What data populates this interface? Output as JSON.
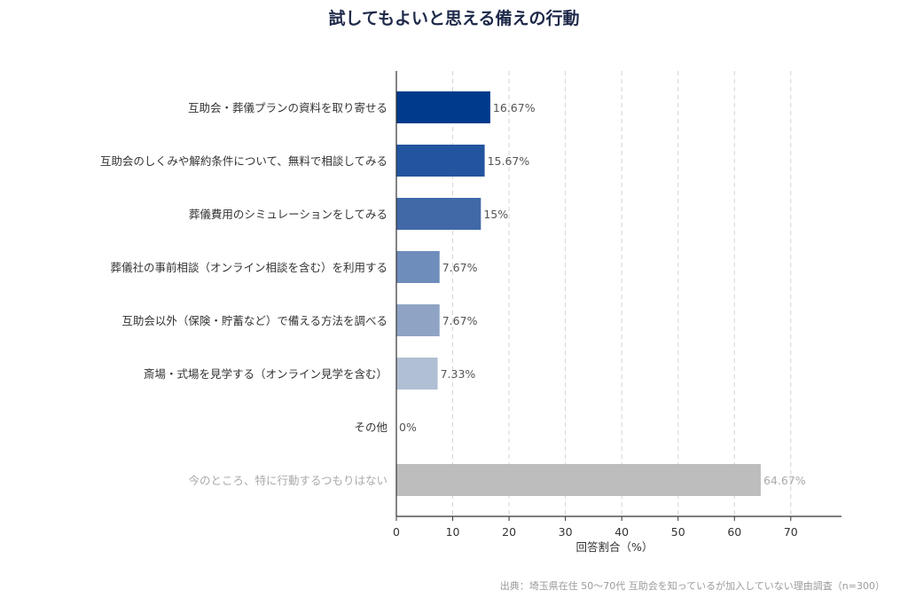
{
  "chart_data": {
    "type": "bar",
    "orientation": "horizontal",
    "title": "試してもよいと思える備えの行動",
    "xlabel": "回答割合（%）",
    "ylabel": "",
    "xlim": [
      0,
      79
    ],
    "xticks": [
      0,
      10,
      20,
      30,
      40,
      50,
      60,
      70
    ],
    "grid": "vertical-dashed",
    "categories": [
      "互助会・葬儀プランの資料を取り寄せる",
      "互助会のしくみや解約条件について、無料で相談してみる",
      "葬儀費用のシミュレーションをしてみる",
      "葬儀社の事前相談（オンライン相談を含む）を利用する",
      "互助会以外（保険・貯蓄など）で備える方法を調べる",
      "斎場・式場を見学する（オンライン見学を含む）",
      "その他",
      "今のところ、特に行動するつもりはない"
    ],
    "values": [
      16.67,
      15.67,
      15,
      7.67,
      7.67,
      7.33,
      0,
      64.67
    ],
    "value_labels": [
      "16.67%",
      "15.67%",
      "15%",
      "7.67%",
      "7.67%",
      "7.33%",
      "0%",
      "64.67%"
    ],
    "colors": [
      "#003a8c",
      "#2354a0",
      "#4169a8",
      "#6f8dbb",
      "#8fa4c5",
      "#b0bfd3",
      "#b0bfd3",
      "#bdbdbd"
    ],
    "label_colors": [
      "#333333",
      "#333333",
      "#333333",
      "#333333",
      "#333333",
      "#333333",
      "#333333",
      "#aaaaaa"
    ]
  },
  "source": "出典：埼玉県在住 50〜70代 互助会を知っているが加入していない理由調査（n=300）"
}
